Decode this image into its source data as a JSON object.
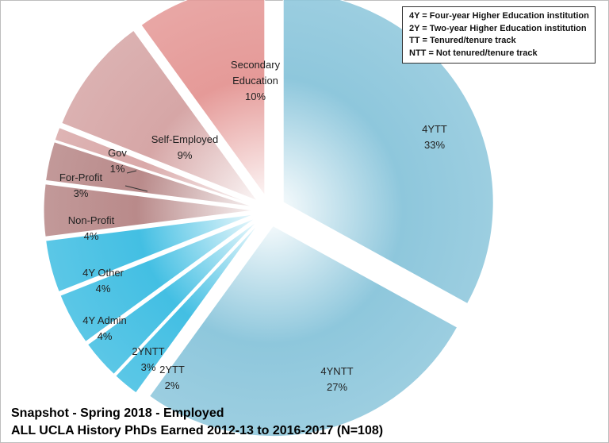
{
  "chart_data": {
    "type": "pie",
    "title": "Snapshot - Spring 2018 - Employed",
    "subtitle": "ALL UCLA History PhDs Earned 2012-13 to 2016-2017 (N=108)",
    "slices": [
      {
        "label": "4YTT",
        "percent_label": "33%",
        "value": 33,
        "color": "#8ec7dc"
      },
      {
        "label": "4YNTT",
        "percent_label": "27%",
        "value": 27,
        "color": "#8ec7dc"
      },
      {
        "label": "2YTT",
        "percent_label": "2%",
        "value": 2,
        "color": "#43bfe3"
      },
      {
        "label": "2YNTT",
        "percent_label": "3%",
        "value": 3,
        "color": "#43bfe3"
      },
      {
        "label": "4Y Admin",
        "percent_label": "4%",
        "value": 4,
        "color": "#43bfe3"
      },
      {
        "label": "4Y Other",
        "percent_label": "4%",
        "value": 4,
        "color": "#43bfe3"
      },
      {
        "label": "Non-Profit",
        "percent_label": "4%",
        "value": 4,
        "color": "#b98a8a"
      },
      {
        "label": "For-Profit",
        "percent_label": "3%",
        "value": 3,
        "color": "#b98a8a"
      },
      {
        "label": "Gov",
        "percent_label": "1%",
        "value": 1,
        "color": "#d9a9a9"
      },
      {
        "label": "Self-Employed",
        "percent_label": "9%",
        "value": 9,
        "color": "#d6a6a6"
      },
      {
        "label": "Secondary Education",
        "percent_label": "10%",
        "value": 10,
        "color": "#e59a98"
      }
    ],
    "legend": [
      "4Y = Four-year Higher Education institution",
      "2Y = Two-year Higher Education  institution",
      "TT = Tenured/tenure track",
      "NTT = Not tenured/tenure track"
    ]
  }
}
